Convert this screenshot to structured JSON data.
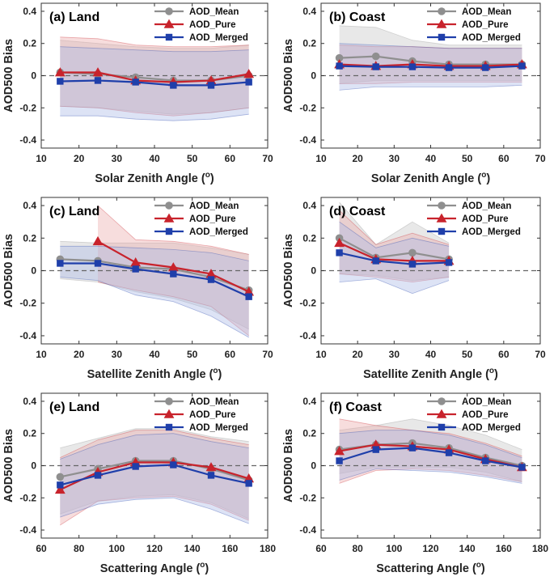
{
  "colors": {
    "mean": "#8f8f8f",
    "pure": "#c8232c",
    "merged": "#1f3faa",
    "mean_band": "#d6d6d6",
    "pure_band": "#e9a6a6",
    "merged_band": "#a9b9e6",
    "zero_line": "#666666"
  },
  "chart_data": [
    {
      "panel": "a",
      "type": "line",
      "title": "(a) Land",
      "xlabel": "Solar Zenith Angle (o)",
      "xlabel_main": "Solar Zenith Angle (",
      "xlabel_sup": "o",
      "xlabel_close": ")",
      "ylabel": "AOD500 Bias",
      "xlim": [
        10,
        70
      ],
      "ylim": [
        -0.45,
        0.45
      ],
      "xticks": [
        "10",
        "20",
        "30",
        "40",
        "50",
        "60",
        "70"
      ],
      "xtick_values": [
        10,
        20,
        30,
        40,
        50,
        60,
        70
      ],
      "yticks": [
        "-0.4",
        "-0.2",
        "0",
        "0.2",
        "0.4"
      ],
      "ytick_values": [
        -0.4,
        -0.2,
        0,
        0.2,
        0.4
      ],
      "legend": [
        "AOD_Mean",
        "AOD_Pure",
        "AOD_Merged"
      ],
      "series": [
        {
          "name": "AOD_Mean",
          "x": [
            15,
            25,
            35,
            45,
            55,
            65
          ],
          "values": [
            0.02,
            0.01,
            -0.01,
            -0.03,
            -0.03,
            0.0
          ],
          "upper": [
            0.22,
            0.2,
            0.18,
            0.17,
            0.17,
            0.19
          ],
          "lower": [
            -0.19,
            -0.2,
            -0.22,
            -0.24,
            -0.23,
            -0.2
          ]
        },
        {
          "name": "AOD_Pure",
          "x": [
            15,
            25,
            35,
            45,
            55,
            65
          ],
          "values": [
            0.02,
            0.02,
            -0.03,
            -0.04,
            -0.03,
            0.01
          ],
          "upper": [
            0.24,
            0.23,
            0.19,
            0.18,
            0.18,
            0.19
          ],
          "lower": [
            -0.19,
            -0.2,
            -0.23,
            -0.25,
            -0.23,
            -0.2
          ]
        },
        {
          "name": "AOD_Merged",
          "x": [
            15,
            25,
            35,
            45,
            55,
            65
          ],
          "values": [
            -0.035,
            -0.03,
            -0.04,
            -0.06,
            -0.06,
            -0.04
          ],
          "upper": [
            0.18,
            0.17,
            0.16,
            0.15,
            0.15,
            0.16
          ],
          "lower": [
            -0.25,
            -0.25,
            -0.27,
            -0.28,
            -0.27,
            -0.24
          ]
        }
      ]
    },
    {
      "panel": "b",
      "type": "line",
      "title": "(b) Coast",
      "xlabel": "Solar Zenith Angle (o)",
      "xlabel_main": "Solar Zenith Angle (",
      "xlabel_sup": "o",
      "xlabel_close": ")",
      "ylabel": "AOD500 Bias",
      "xlim": [
        10,
        70
      ],
      "ylim": [
        -0.45,
        0.45
      ],
      "xticks": [
        "10",
        "20",
        "30",
        "40",
        "50",
        "60",
        "70"
      ],
      "xtick_values": [
        10,
        20,
        30,
        40,
        50,
        60,
        70
      ],
      "yticks": [
        "-0.4",
        "-0.2",
        "0",
        "0.2",
        "0.4"
      ],
      "ytick_values": [
        -0.4,
        -0.2,
        0,
        0.2,
        0.4
      ],
      "legend": [
        "AOD_Mean",
        "AOD_Pure",
        "AOD_Merged"
      ],
      "series": [
        {
          "name": "AOD_Mean",
          "x": [
            15,
            25,
            35,
            45,
            55,
            65
          ],
          "values": [
            0.11,
            0.12,
            0.09,
            0.07,
            0.07,
            0.07
          ],
          "upper": [
            0.31,
            0.3,
            0.22,
            0.19,
            0.19,
            0.19
          ],
          "lower": [
            -0.05,
            -0.03,
            -0.03,
            -0.03,
            -0.03,
            -0.03
          ]
        },
        {
          "name": "AOD_Pure",
          "x": [
            15,
            25,
            35,
            45,
            55,
            65
          ],
          "values": [
            0.07,
            0.06,
            0.07,
            0.06,
            0.06,
            0.07
          ],
          "upper": [
            0.19,
            0.18,
            0.18,
            0.17,
            0.17,
            0.17
          ],
          "lower": [
            -0.05,
            -0.05,
            -0.04,
            -0.04,
            -0.04,
            -0.04
          ]
        },
        {
          "name": "AOD_Merged",
          "x": [
            15,
            25,
            35,
            45,
            55,
            65
          ],
          "values": [
            0.06,
            0.055,
            0.055,
            0.05,
            0.05,
            0.06
          ],
          "upper": [
            0.2,
            0.19,
            0.18,
            0.17,
            0.17,
            0.17
          ],
          "lower": [
            -0.09,
            -0.07,
            -0.07,
            -0.07,
            -0.07,
            -0.06
          ]
        }
      ]
    },
    {
      "panel": "c",
      "type": "line",
      "title": "(c) Land",
      "xlabel": "Satellite Zenith Angle (o)",
      "xlabel_main": "Satellite Zenith Angle (",
      "xlabel_sup": "o",
      "xlabel_close": ")",
      "ylabel": "AOD500 Bias",
      "xlim": [
        10,
        70
      ],
      "ylim": [
        -0.45,
        0.45
      ],
      "xticks": [
        "10",
        "20",
        "30",
        "40",
        "50",
        "60",
        "70"
      ],
      "xtick_values": [
        10,
        20,
        30,
        40,
        50,
        60,
        70
      ],
      "yticks": [
        "-0.4",
        "-0.2",
        "0",
        "0.2",
        "0.4"
      ],
      "ytick_values": [
        -0.4,
        -0.2,
        0,
        0.2,
        0.4
      ],
      "legend": [
        "AOD_Mean",
        "AOD_Pure",
        "AOD_Merged"
      ],
      "series": [
        {
          "name": "AOD_Mean",
          "x": [
            15,
            25,
            35,
            45,
            55,
            65
          ],
          "values": [
            0.07,
            0.06,
            0.02,
            0.01,
            -0.04,
            -0.12
          ],
          "upper": [
            0.18,
            0.17,
            0.17,
            0.17,
            0.14,
            0.1
          ],
          "lower": [
            -0.05,
            -0.07,
            -0.13,
            -0.17,
            -0.24,
            -0.36
          ]
        },
        {
          "name": "AOD_Pure",
          "x": [
            25,
            35,
            45,
            55,
            65
          ],
          "values": [
            0.18,
            0.05,
            0.02,
            -0.02,
            -0.13
          ],
          "upper": [
            0.4,
            0.19,
            0.18,
            0.15,
            0.1
          ],
          "lower": [
            -0.07,
            -0.12,
            -0.16,
            -0.22,
            -0.4
          ]
        },
        {
          "name": "AOD_Merged",
          "x": [
            15,
            25,
            35,
            45,
            55,
            65
          ],
          "values": [
            0.045,
            0.045,
            0.01,
            -0.02,
            -0.055,
            -0.16
          ],
          "upper": [
            0.15,
            0.15,
            0.14,
            0.13,
            0.11,
            0.06
          ],
          "lower": [
            -0.04,
            -0.06,
            -0.15,
            -0.19,
            -0.28,
            -0.41
          ]
        }
      ]
    },
    {
      "panel": "d",
      "type": "line",
      "title": "(d) Coast",
      "xlabel": "Satellite Zenith Angle (o)",
      "xlabel_main": "Satellite Zenith Angle (",
      "xlabel_sup": "o",
      "xlabel_close": ")",
      "ylabel": "AOD500 Bias",
      "xlim": [
        10,
        70
      ],
      "ylim": [
        -0.45,
        0.45
      ],
      "xticks": [
        "10",
        "20",
        "30",
        "40",
        "50",
        "60",
        "70"
      ],
      "xtick_values": [
        10,
        20,
        30,
        40,
        50,
        60,
        70
      ],
      "yticks": [
        "-0.4",
        "-0.2",
        "0",
        "0.2",
        "0.4"
      ],
      "ytick_values": [
        -0.4,
        -0.2,
        0,
        0.2,
        0.4
      ],
      "legend": [
        "AOD_Mean",
        "AOD_Pure",
        "AOD_Merged"
      ],
      "series": [
        {
          "name": "AOD_Mean",
          "x": [
            15,
            25,
            35,
            45
          ],
          "values": [
            0.2,
            0.08,
            0.11,
            0.07
          ],
          "upper": [
            0.42,
            0.16,
            0.3,
            0.17
          ],
          "lower": [
            -0.02,
            -0.03,
            -0.06,
            -0.04
          ]
        },
        {
          "name": "AOD_Pure",
          "x": [
            15,
            25,
            35,
            45
          ],
          "values": [
            0.17,
            0.07,
            0.06,
            0.06
          ],
          "upper": [
            0.37,
            0.16,
            0.23,
            0.16
          ],
          "lower": [
            -0.02,
            -0.04,
            -0.07,
            -0.04
          ]
        },
        {
          "name": "AOD_Merged",
          "x": [
            15,
            25,
            35,
            45
          ],
          "values": [
            0.11,
            0.06,
            0.04,
            0.05
          ],
          "upper": [
            0.3,
            0.14,
            0.2,
            0.15
          ],
          "lower": [
            -0.07,
            -0.05,
            -0.14,
            -0.06
          ]
        }
      ]
    },
    {
      "panel": "e",
      "type": "line",
      "title": "(e) Land",
      "xlabel": "Scattering Angle (o)",
      "xlabel_main": "Scattering Angle (",
      "xlabel_sup": "o",
      "xlabel_close": ")",
      "ylabel": "AOD500 Bias",
      "xlim": [
        60,
        180
      ],
      "ylim": [
        -0.45,
        0.45
      ],
      "xticks": [
        "60",
        "80",
        "100",
        "120",
        "140",
        "160",
        "180"
      ],
      "xtick_values": [
        60,
        80,
        100,
        120,
        140,
        160,
        180
      ],
      "yticks": [
        "-0.4",
        "-0.2",
        "0",
        "0.2",
        "0.4"
      ],
      "ytick_values": [
        -0.4,
        -0.2,
        0,
        0.2,
        0.4
      ],
      "legend": [
        "AOD_Mean",
        "AOD_Pure",
        "AOD_Merged"
      ],
      "series": [
        {
          "name": "AOD_Mean",
          "x": [
            70,
            90,
            110,
            130,
            150,
            170
          ],
          "values": [
            -0.07,
            -0.02,
            0.03,
            0.03,
            -0.02,
            -0.09
          ],
          "upper": [
            0.11,
            0.17,
            0.23,
            0.23,
            0.18,
            0.15
          ],
          "lower": [
            -0.3,
            -0.22,
            -0.19,
            -0.18,
            -0.23,
            -0.33
          ]
        },
        {
          "name": "AOD_Pure",
          "x": [
            70,
            90,
            110,
            130,
            150,
            170
          ],
          "values": [
            -0.15,
            -0.04,
            0.02,
            0.02,
            -0.01,
            -0.08
          ],
          "upper": [
            0.05,
            0.16,
            0.22,
            0.22,
            0.17,
            0.13
          ],
          "lower": [
            -0.37,
            -0.22,
            -0.2,
            -0.19,
            -0.24,
            -0.34
          ]
        },
        {
          "name": "AOD_Merged",
          "x": [
            70,
            90,
            110,
            130,
            150,
            170
          ],
          "values": [
            -0.12,
            -0.06,
            -0.005,
            0.005,
            -0.06,
            -0.11
          ],
          "upper": [
            0.04,
            0.13,
            0.19,
            0.2,
            0.15,
            0.11
          ],
          "lower": [
            -0.32,
            -0.24,
            -0.21,
            -0.2,
            -0.27,
            -0.36
          ]
        }
      ]
    },
    {
      "panel": "f",
      "type": "line",
      "title": "(f) Coast",
      "xlabel": "Scattering Angle (o)",
      "xlabel_main": "Scattering Angle (",
      "xlabel_sup": "o",
      "xlabel_close": ")",
      "ylabel": "AOD500 Bias",
      "xlim": [
        60,
        180
      ],
      "ylim": [
        -0.45,
        0.45
      ],
      "xticks": [
        "60",
        "80",
        "100",
        "120",
        "140",
        "160",
        "180"
      ],
      "xtick_values": [
        60,
        80,
        100,
        120,
        140,
        160,
        180
      ],
      "yticks": [
        "-0.4",
        "-0.2",
        "0",
        "0.2",
        "0.4"
      ],
      "ytick_values": [
        -0.4,
        -0.2,
        0,
        0.2,
        0.4
      ],
      "legend": [
        "AOD_Mean",
        "AOD_Pure",
        "AOD_Merged"
      ],
      "series": [
        {
          "name": "AOD_Mean",
          "x": [
            70,
            90,
            110,
            130,
            150,
            170
          ],
          "values": [
            0.1,
            0.13,
            0.14,
            0.11,
            0.05,
            0.0
          ],
          "upper": [
            0.22,
            0.25,
            0.29,
            0.25,
            0.19,
            0.1
          ],
          "lower": [
            -0.05,
            -0.01,
            -0.01,
            -0.01,
            -0.04,
            -0.1
          ]
        },
        {
          "name": "AOD_Pure",
          "x": [
            70,
            90,
            110,
            130,
            150,
            170
          ],
          "values": [
            0.09,
            0.13,
            0.12,
            0.1,
            0.04,
            -0.01
          ],
          "upper": [
            0.29,
            0.25,
            0.22,
            0.2,
            0.14,
            0.06
          ],
          "lower": [
            -0.11,
            -0.03,
            -0.02,
            -0.03,
            -0.06,
            -0.1
          ]
        },
        {
          "name": "AOD_Merged",
          "x": [
            70,
            90,
            110,
            130,
            150,
            170
          ],
          "values": [
            0.03,
            0.1,
            0.11,
            0.08,
            0.03,
            -0.01
          ],
          "upper": [
            0.2,
            0.22,
            0.22,
            0.19,
            0.13,
            0.05
          ],
          "lower": [
            -0.09,
            -0.02,
            -0.03,
            -0.04,
            -0.07,
            -0.11
          ]
        }
      ]
    }
  ]
}
